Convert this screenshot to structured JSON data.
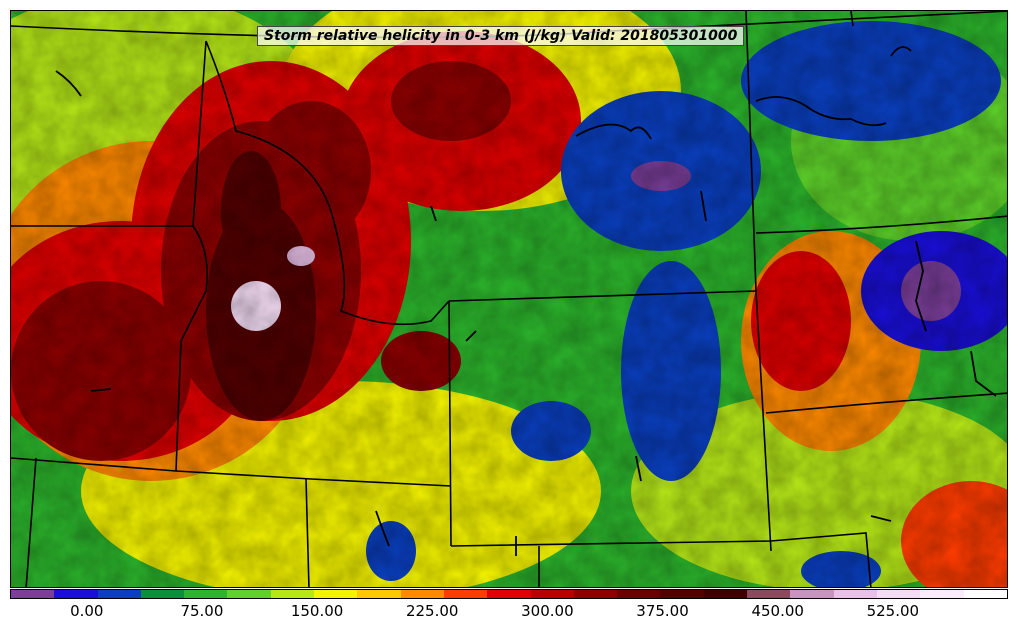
{
  "map": {
    "title": "Storm relative helicity in 0-3 km (J/kg) Valid: 201805301000",
    "variable": "Storm relative helicity in 0-3 km",
    "units": "J/kg",
    "valid_time": "201805301000",
    "region": "Western/Central United States",
    "boundaries": [
      "state-borders",
      "lakes",
      "coastline"
    ]
  },
  "colorbar": {
    "colors": [
      "#7b3f9b",
      "#1a0fd6",
      "#0a3fbf",
      "#0a8f3a",
      "#2cb52c",
      "#5ed12a",
      "#b6e818",
      "#f4f400",
      "#ffc800",
      "#ff8a00",
      "#ff3c00",
      "#e00000",
      "#b80000",
      "#8c0000",
      "#6b0000",
      "#520000",
      "#3c0000",
      "#8a4a5e",
      "#c794c0",
      "#e8c0e8",
      "#f4dcf4",
      "#fbecfb",
      "#ffffff"
    ],
    "tick_labels": [
      "0.00",
      "75.00",
      "150.00",
      "225.00",
      "300.00",
      "375.00",
      "450.00",
      "525.00"
    ],
    "tick_values": [
      0,
      75,
      150,
      225,
      300,
      375,
      450,
      525
    ],
    "range": [
      -50,
      600
    ]
  }
}
